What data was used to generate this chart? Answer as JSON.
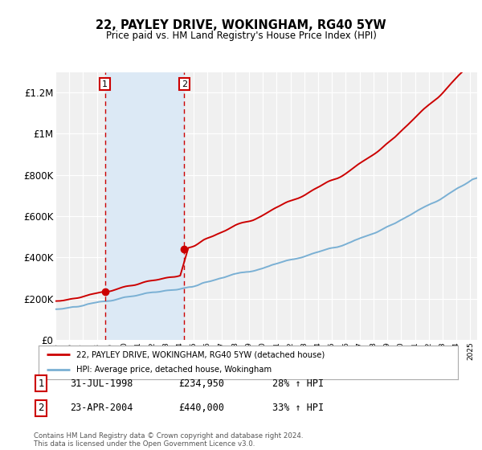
{
  "title": "22, PAYLEY DRIVE, WOKINGHAM, RG40 5YW",
  "subtitle": "Price paid vs. HM Land Registry's House Price Index (HPI)",
  "sale1_date": "31-JUL-1998",
  "sale1_price": 234950,
  "sale1_hpi": "28% ↑ HPI",
  "sale2_date": "23-APR-2004",
  "sale2_price": 440000,
  "sale2_hpi": "33% ↑ HPI",
  "legend_line1": "22, PAYLEY DRIVE, WOKINGHAM, RG40 5YW (detached house)",
  "legend_line2": "HPI: Average price, detached house, Wokingham",
  "footer": "Contains HM Land Registry data © Crown copyright and database right 2024.\nThis data is licensed under the Open Government Licence v3.0.",
  "line_color_red": "#cc0000",
  "line_color_blue": "#7ab0d4",
  "shaded_color": "#dce9f5",
  "marker_color": "#cc0000",
  "vline_color": "#cc0000",
  "ylim": [
    0,
    1300000
  ],
  "yticks": [
    0,
    200000,
    400000,
    600000,
    800000,
    1000000,
    1200000
  ],
  "ytick_labels": [
    "£0",
    "£200K",
    "£400K",
    "£600K",
    "£800K",
    "£1M",
    "£1.2M"
  ],
  "sale1_x": 1998.58,
  "sale2_x": 2004.31,
  "background_color": "#ffffff",
  "plot_bg_color": "#f0f0f0"
}
